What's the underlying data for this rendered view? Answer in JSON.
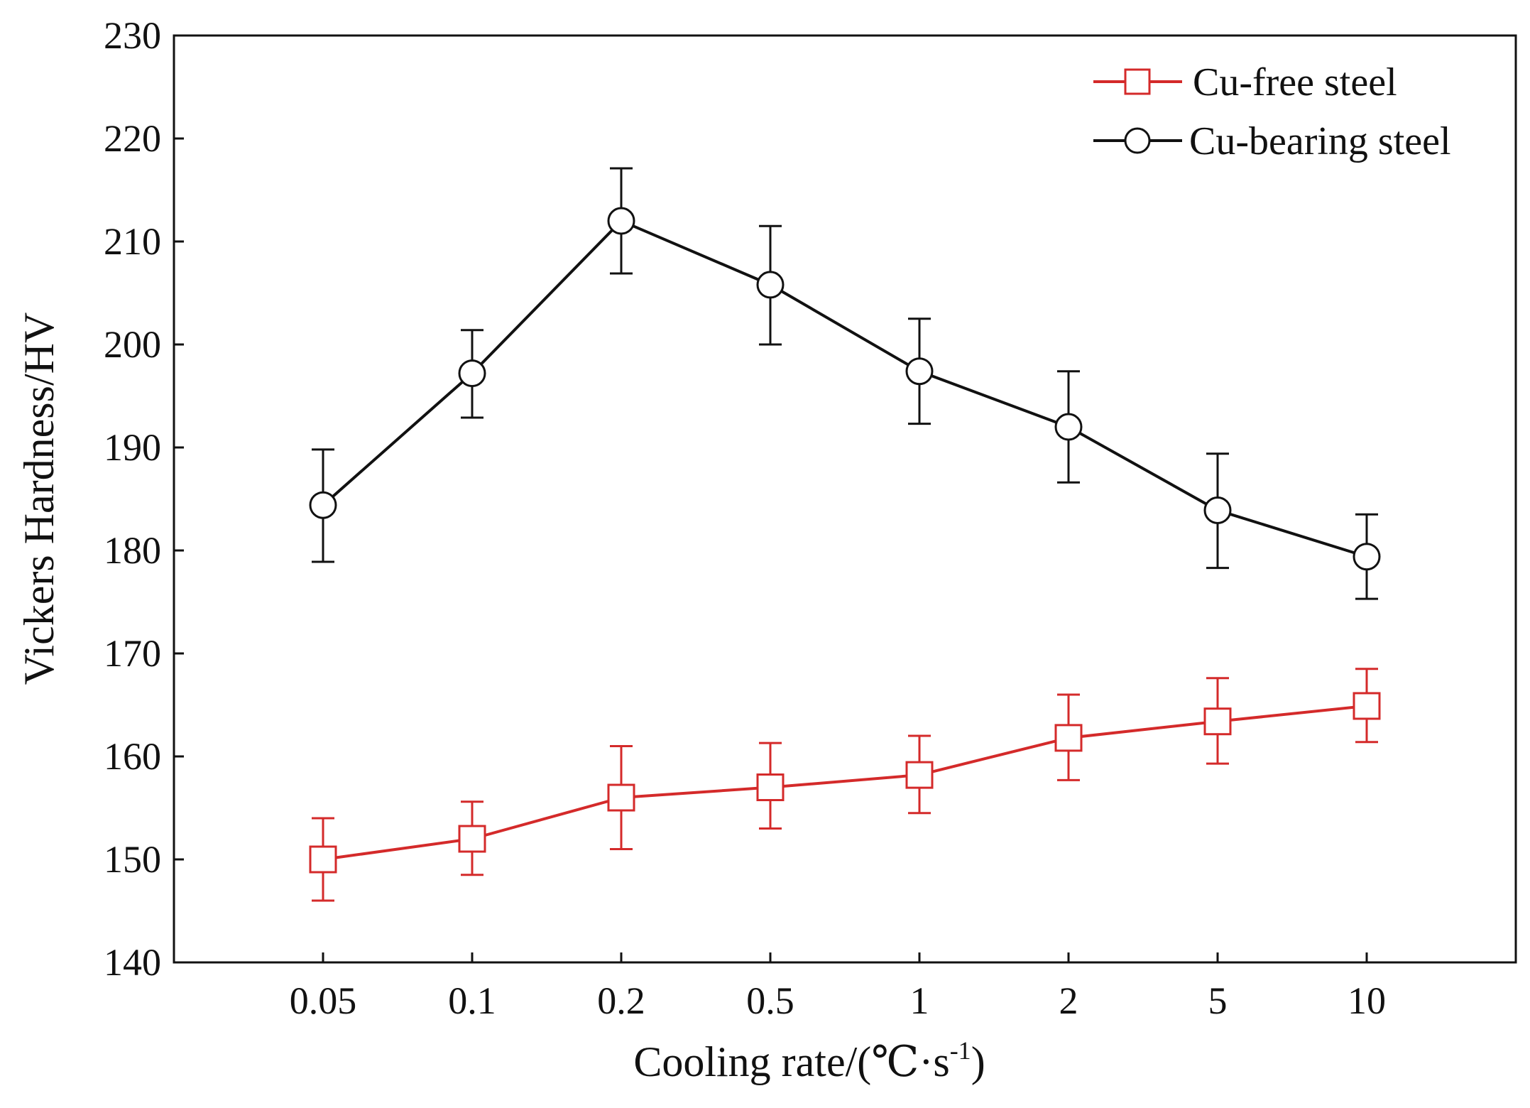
{
  "chart_data": {
    "type": "line",
    "title": "",
    "xlabel": "Cooling rate/(℃·s",
    "xlabel_sup": "-1",
    "xlabel_end": ")",
    "ylabel": "Vickers Hardness/HV",
    "categories": [
      "0.05",
      "0.1",
      "0.2",
      "0.5",
      "1",
      "2",
      "5",
      "10"
    ],
    "ylim": [
      140,
      230
    ],
    "yticks": [
      140,
      150,
      160,
      170,
      180,
      190,
      200,
      210,
      220,
      230
    ],
    "legend_position": "top-right",
    "grid": false,
    "series": [
      {
        "name": "Cu-free steel",
        "color": "#d42a2a",
        "marker": "square",
        "values": [
          150.0,
          152.0,
          156.0,
          157.0,
          158.2,
          161.8,
          163.4,
          164.9
        ],
        "err_low": [
          146.0,
          148.5,
          151.0,
          153.0,
          154.5,
          157.7,
          159.3,
          161.4
        ],
        "err_high": [
          154.0,
          155.6,
          161.0,
          161.3,
          162.0,
          166.0,
          167.6,
          168.5
        ]
      },
      {
        "name": "Cu-bearing steel",
        "color": "#111111",
        "marker": "circle",
        "values": [
          184.4,
          197.2,
          212.0,
          205.8,
          197.4,
          192.0,
          183.9,
          179.4
        ],
        "err_low": [
          178.9,
          192.9,
          206.9,
          200.0,
          192.3,
          186.6,
          178.3,
          175.3
        ],
        "err_high": [
          189.8,
          201.4,
          217.1,
          211.5,
          202.5,
          197.4,
          189.4,
          183.5
        ]
      }
    ]
  }
}
